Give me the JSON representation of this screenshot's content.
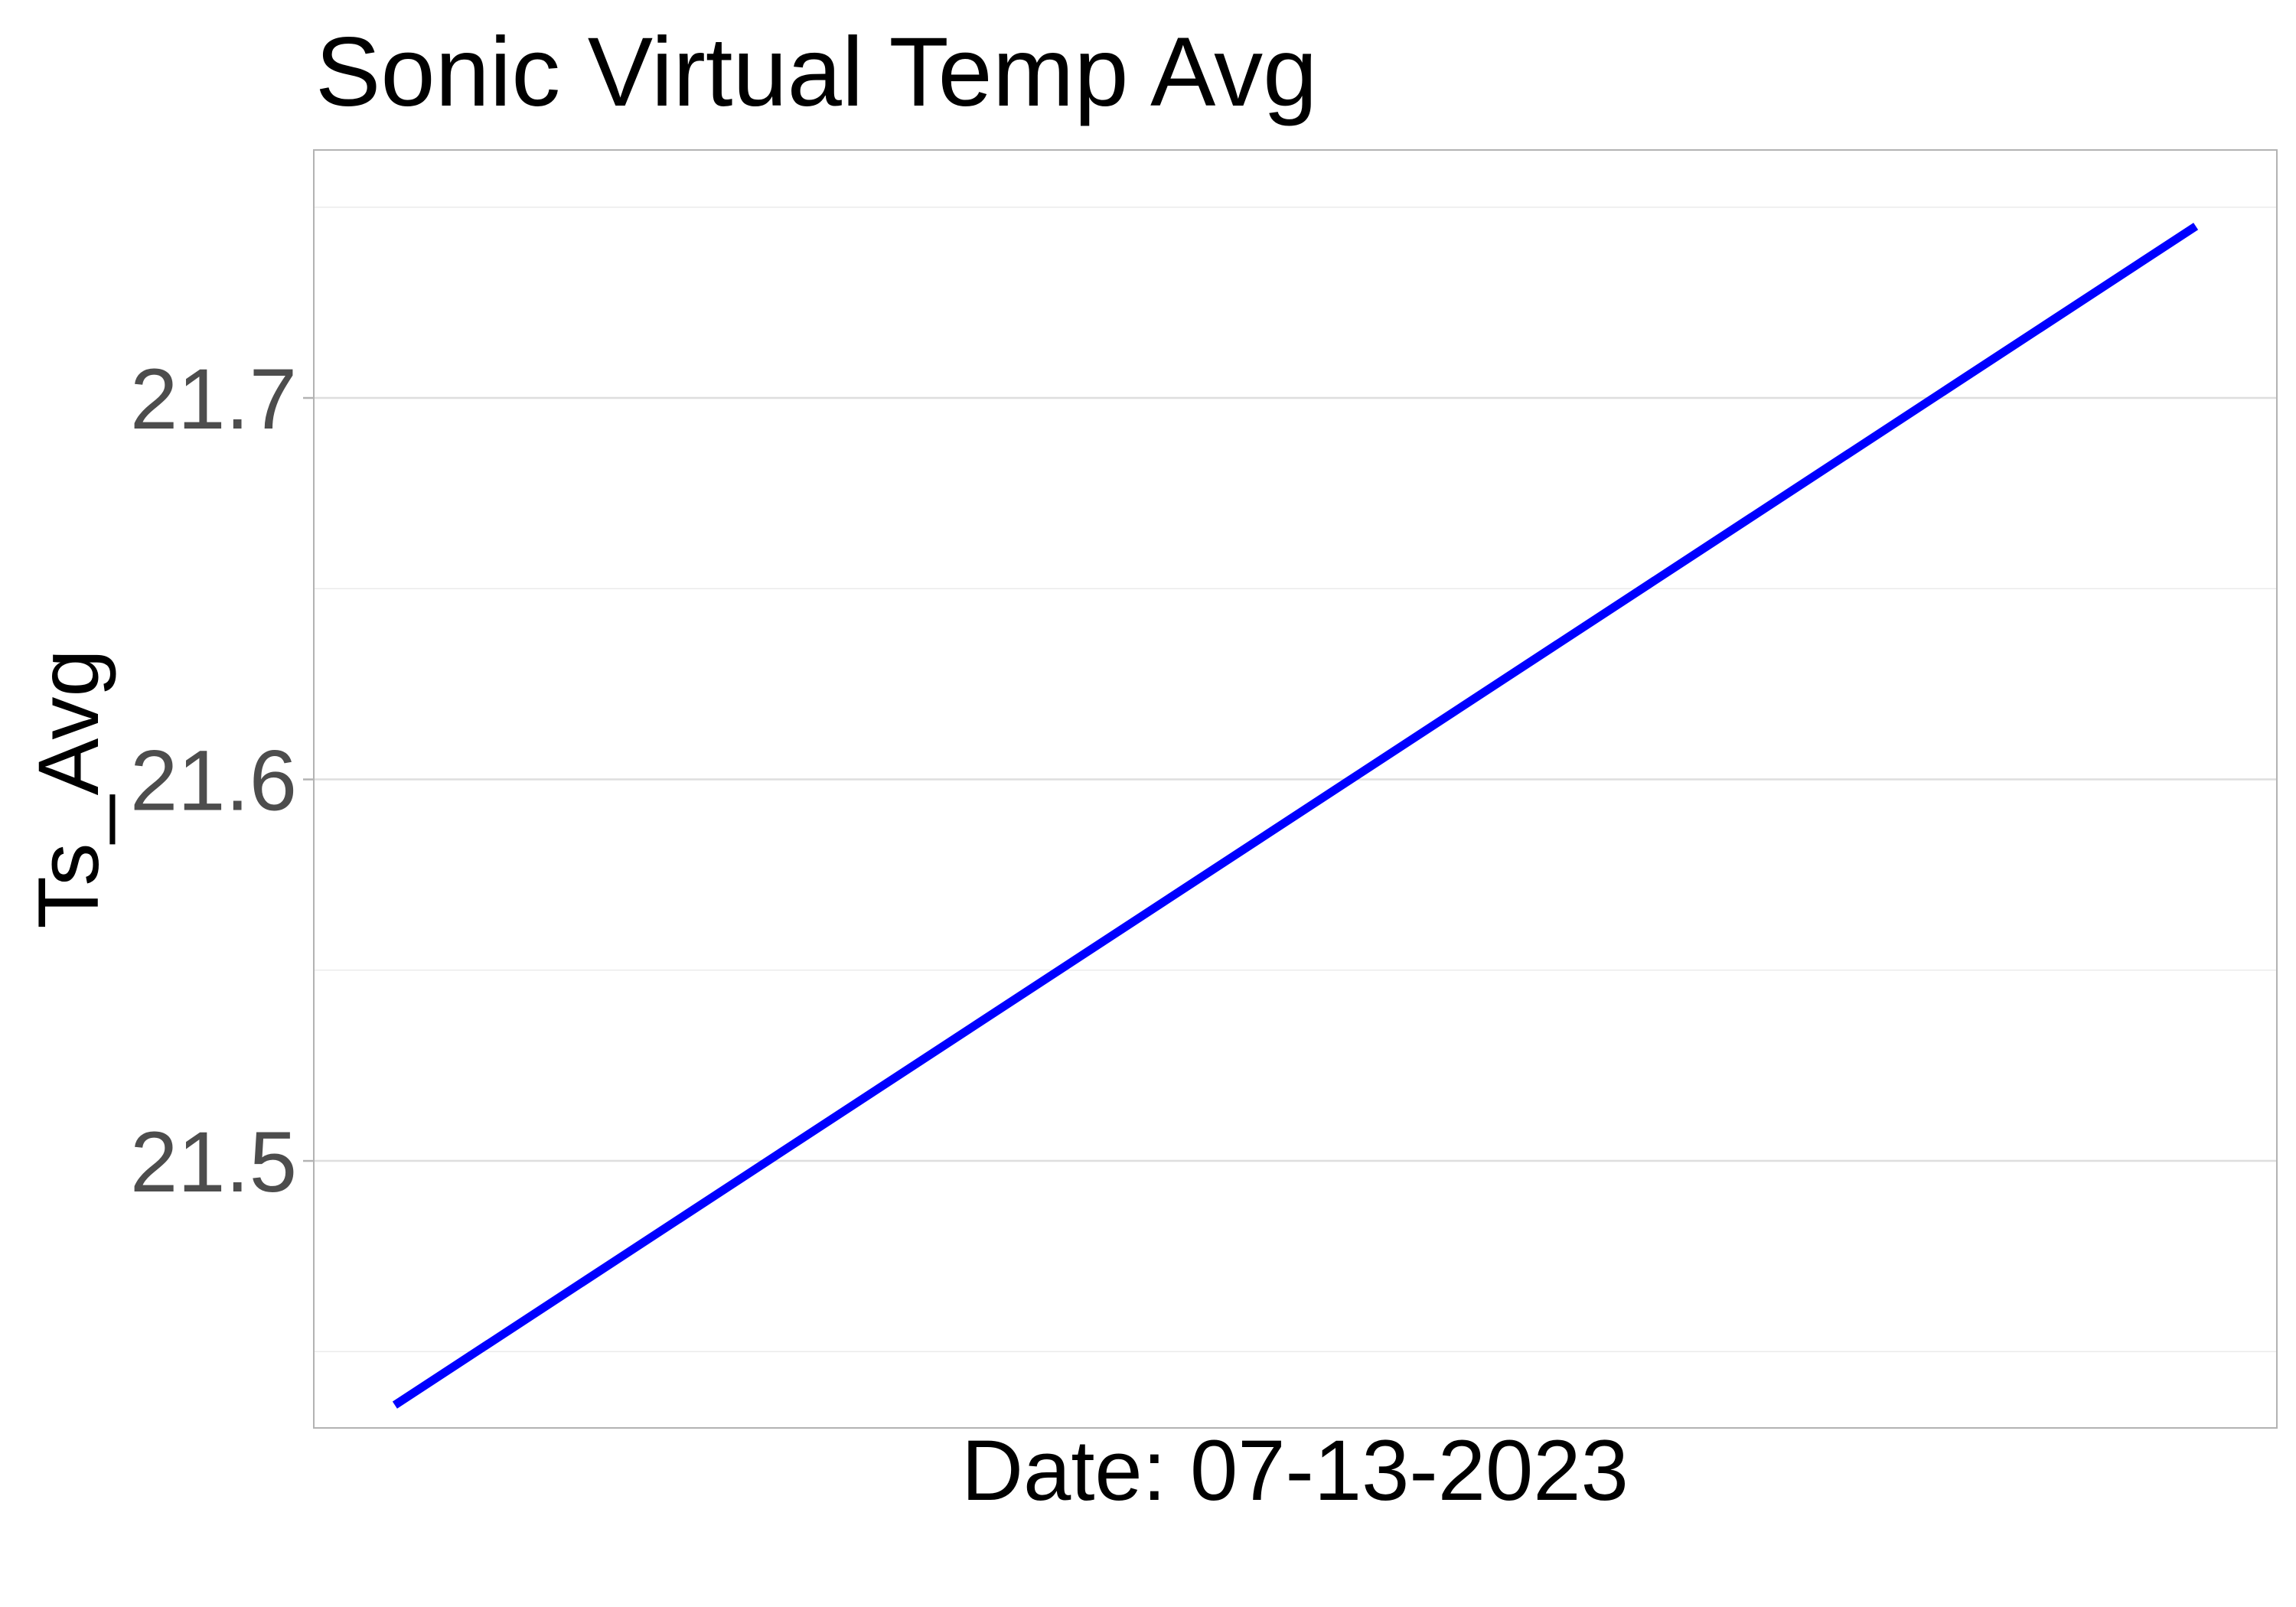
{
  "chart_data": {
    "type": "line",
    "title": "Sonic Virtual Temp Avg",
    "xlabel": "Date: 07-13-2023",
    "ylabel": "Ts_Avg",
    "x": [
      1,
      2
    ],
    "series": [
      {
        "values": [
          21.436,
          21.745
        ],
        "color": "#0000ff"
      }
    ],
    "ylim": [
      21.43,
      21.765
    ],
    "y_ticks": [
      21.5,
      21.6,
      21.7
    ],
    "y_tick_labels": [
      "21.5",
      "21.6",
      "21.7"
    ],
    "x_ticks": [],
    "grid": true,
    "legend": "none"
  }
}
